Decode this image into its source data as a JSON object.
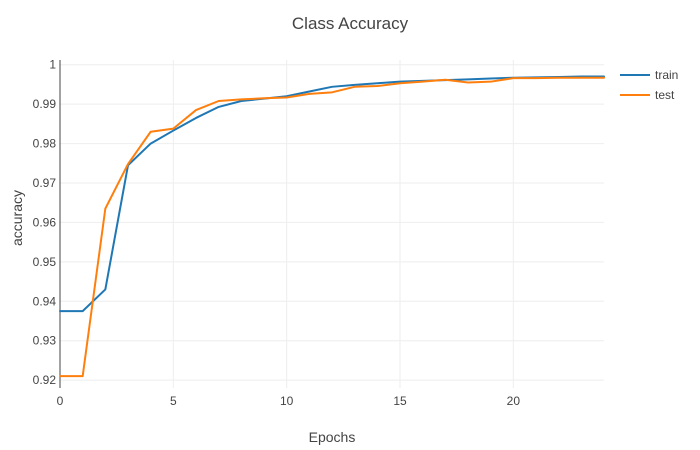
{
  "chart_data": {
    "type": "line",
    "title": "Class Accuracy",
    "xlabel": "Epochs",
    "ylabel": "accuracy",
    "xlim": [
      0,
      24
    ],
    "ylim": [
      0.918,
      1.0012
    ],
    "x_ticks": [
      0,
      5,
      10,
      15,
      20
    ],
    "y_ticks": [
      0.92,
      0.93,
      0.94,
      0.95,
      0.96,
      0.97,
      0.98,
      0.99,
      1
    ],
    "y_tick_labels": [
      "0.92",
      "0.93",
      "0.94",
      "0.95",
      "0.96",
      "0.97",
      "0.98",
      "0.99",
      "1"
    ],
    "grid": true,
    "legend_position": "top-right",
    "x": [
      0,
      1,
      2,
      3,
      4,
      5,
      6,
      7,
      8,
      9,
      10,
      11,
      12,
      13,
      14,
      15,
      16,
      17,
      18,
      19,
      20,
      21,
      22,
      23,
      24
    ],
    "series": [
      {
        "name": "train",
        "color": "#1f77b4",
        "values": [
          0.9375,
          0.9375,
          0.943,
          0.9745,
          0.98,
          0.9833,
          0.9865,
          0.9893,
          0.9908,
          0.9914,
          0.992,
          0.9932,
          0.9944,
          0.9949,
          0.9953,
          0.9957,
          0.9959,
          0.9961,
          0.9963,
          0.9965,
          0.9967,
          0.9968,
          0.9969,
          0.997,
          0.997
        ]
      },
      {
        "name": "test",
        "color": "#ff7f0e",
        "values": [
          0.921,
          0.921,
          0.9635,
          0.9748,
          0.983,
          0.9838,
          0.9885,
          0.9908,
          0.9912,
          0.9915,
          0.9917,
          0.9926,
          0.993,
          0.9944,
          0.9946,
          0.9953,
          0.9957,
          0.9962,
          0.9955,
          0.9957,
          0.9966,
          0.9966,
          0.9967,
          0.9967,
          0.9967
        ]
      }
    ]
  }
}
